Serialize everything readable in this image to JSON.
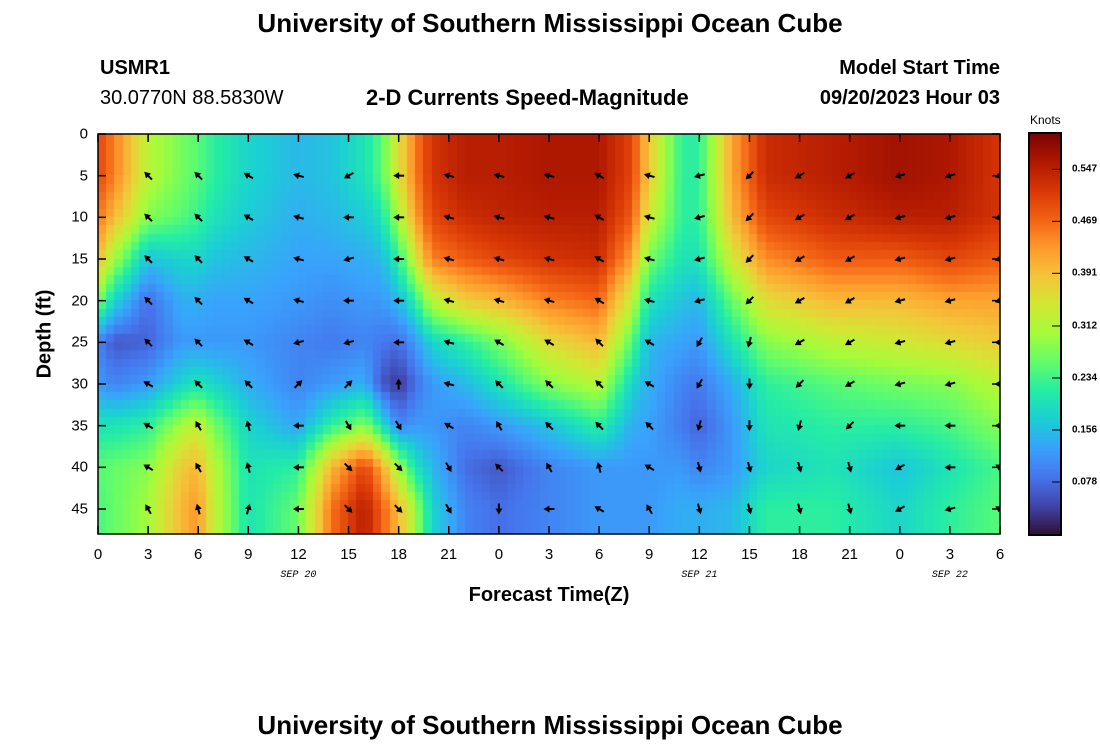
{
  "header": {
    "title": "University of Southern Mississippi Ocean Cube",
    "station": "USMR1",
    "coords": "30.0770N  88.5830W",
    "subtitle": "2-D Currents Speed-Magnitude",
    "start_label": "Model Start Time",
    "start_value": "09/20/2023 Hour 03"
  },
  "footer": {
    "title": "University of Southern Mississippi Ocean Cube"
  },
  "chart_data": {
    "type": "heatmap",
    "title": "2-D Currents Speed-Magnitude",
    "xlabel": "Forecast Time(Z)",
    "ylabel": "Depth (ft)",
    "x_tick_labels": [
      "0",
      "3",
      "6",
      "9",
      "12",
      "15",
      "18",
      "21",
      "0",
      "3",
      "6",
      "9",
      "12",
      "15",
      "18",
      "21",
      "0",
      "3",
      "6"
    ],
    "x_hours": [
      0,
      3,
      6,
      9,
      12,
      15,
      18,
      21,
      24,
      27,
      30,
      33,
      36,
      39,
      42,
      45,
      48,
      51,
      54
    ],
    "xlim": [
      0,
      54
    ],
    "date_labels": [
      {
        "text": "SEP 20",
        "hour": 12
      },
      {
        "text": "SEP 21",
        "hour": 36
      },
      {
        "text": "SEP 22",
        "hour": 51
      }
    ],
    "y_tick_labels": [
      "0",
      "5",
      "10",
      "15",
      "20",
      "25",
      "30",
      "35",
      "40",
      "45"
    ],
    "y_ticks": [
      0,
      5,
      10,
      15,
      20,
      25,
      30,
      35,
      40,
      45
    ],
    "ylim": [
      0,
      48
    ],
    "colorbar": {
      "unit": "Knots",
      "tick_labels": [
        "0.547",
        "0.469",
        "0.391",
        "0.312",
        "0.234",
        "0.156",
        "0.078"
      ],
      "tick_values": [
        0.547,
        0.469,
        0.391,
        0.312,
        0.234,
        0.156,
        0.078
      ],
      "range": [
        0.0,
        0.6
      ],
      "colors": [
        "#30123b",
        "#4145ab",
        "#4675ed",
        "#39a2fc",
        "#1bcfd4",
        "#24eca6",
        "#61fc6c",
        "#a4fc3b",
        "#d1e834",
        "#f3c63a",
        "#fe9b2d",
        "#f36315",
        "#d93806",
        "#b11901",
        "#7a0403"
      ]
    },
    "speed_profiles_knots": {
      "hours": [
        0,
        1,
        3,
        5,
        6,
        7,
        9,
        12,
        14,
        16,
        17,
        18,
        19,
        20,
        22,
        24,
        27,
        30,
        32,
        33,
        35,
        36,
        38,
        40,
        44,
        48,
        51,
        54
      ],
      "depths_ft": [
        0,
        5,
        10,
        15,
        20,
        25,
        30,
        35,
        40,
        45,
        48
      ],
      "values": [
        [
          0.5,
          0.5,
          0.46,
          0.4,
          0.28,
          0.1,
          0.12,
          0.2,
          0.25,
          0.24,
          0.24
        ],
        [
          0.45,
          0.45,
          0.4,
          0.3,
          0.18,
          0.06,
          0.1,
          0.2,
          0.26,
          0.26,
          0.26
        ],
        [
          0.32,
          0.32,
          0.28,
          0.16,
          0.08,
          0.07,
          0.12,
          0.22,
          0.28,
          0.3,
          0.3
        ],
        [
          0.27,
          0.27,
          0.25,
          0.18,
          0.14,
          0.12,
          0.18,
          0.3,
          0.38,
          0.4,
          0.4
        ],
        [
          0.25,
          0.25,
          0.23,
          0.18,
          0.14,
          0.12,
          0.2,
          0.33,
          0.4,
          0.43,
          0.43
        ],
        [
          0.22,
          0.22,
          0.2,
          0.16,
          0.13,
          0.12,
          0.18,
          0.27,
          0.32,
          0.33,
          0.33
        ],
        [
          0.18,
          0.18,
          0.17,
          0.15,
          0.13,
          0.12,
          0.14,
          0.18,
          0.2,
          0.2,
          0.2
        ],
        [
          0.15,
          0.15,
          0.14,
          0.13,
          0.12,
          0.1,
          0.1,
          0.13,
          0.22,
          0.26,
          0.26
        ],
        [
          0.16,
          0.16,
          0.15,
          0.13,
          0.11,
          0.09,
          0.12,
          0.22,
          0.4,
          0.46,
          0.46
        ],
        [
          0.2,
          0.2,
          0.17,
          0.14,
          0.12,
          0.1,
          0.14,
          0.28,
          0.5,
          0.55,
          0.55
        ],
        [
          0.25,
          0.25,
          0.2,
          0.15,
          0.12,
          0.09,
          0.06,
          0.2,
          0.42,
          0.48,
          0.48
        ],
        [
          0.35,
          0.35,
          0.3,
          0.22,
          0.15,
          0.08,
          0.03,
          0.1,
          0.3,
          0.4,
          0.4
        ],
        [
          0.45,
          0.45,
          0.42,
          0.34,
          0.22,
          0.12,
          0.08,
          0.12,
          0.2,
          0.3,
          0.3
        ],
        [
          0.52,
          0.52,
          0.5,
          0.45,
          0.32,
          0.18,
          0.12,
          0.12,
          0.15,
          0.18,
          0.18
        ],
        [
          0.55,
          0.55,
          0.53,
          0.48,
          0.38,
          0.22,
          0.15,
          0.1,
          0.08,
          0.1,
          0.1
        ],
        [
          0.55,
          0.55,
          0.54,
          0.5,
          0.4,
          0.27,
          0.2,
          0.12,
          0.06,
          0.08,
          0.08
        ],
        [
          0.56,
          0.56,
          0.55,
          0.52,
          0.45,
          0.36,
          0.28,
          0.16,
          0.1,
          0.1,
          0.1
        ],
        [
          0.56,
          0.56,
          0.55,
          0.53,
          0.47,
          0.4,
          0.32,
          0.22,
          0.12,
          0.12,
          0.12
        ],
        [
          0.5,
          0.5,
          0.48,
          0.42,
          0.33,
          0.25,
          0.18,
          0.14,
          0.12,
          0.12,
          0.12
        ],
        [
          0.38,
          0.38,
          0.34,
          0.27,
          0.2,
          0.15,
          0.14,
          0.13,
          0.12,
          0.12,
          0.12
        ],
        [
          0.22,
          0.22,
          0.22,
          0.2,
          0.16,
          0.13,
          0.1,
          0.09,
          0.12,
          0.14,
          0.14
        ],
        [
          0.22,
          0.22,
          0.22,
          0.2,
          0.15,
          0.12,
          0.09,
          0.07,
          0.1,
          0.14,
          0.14
        ],
        [
          0.42,
          0.42,
          0.4,
          0.34,
          0.26,
          0.2,
          0.14,
          0.12,
          0.12,
          0.15,
          0.15
        ],
        [
          0.53,
          0.53,
          0.5,
          0.44,
          0.36,
          0.28,
          0.22,
          0.2,
          0.18,
          0.22,
          0.22
        ],
        [
          0.55,
          0.55,
          0.53,
          0.48,
          0.4,
          0.32,
          0.25,
          0.22,
          0.2,
          0.22,
          0.22
        ],
        [
          0.57,
          0.57,
          0.55,
          0.48,
          0.4,
          0.34,
          0.27,
          0.22,
          0.16,
          0.18,
          0.18
        ],
        [
          0.56,
          0.56,
          0.55,
          0.5,
          0.42,
          0.36,
          0.28,
          0.24,
          0.2,
          0.22,
          0.22
        ],
        [
          0.52,
          0.52,
          0.52,
          0.48,
          0.42,
          0.38,
          0.32,
          0.28,
          0.24,
          0.25,
          0.25
        ]
      ]
    },
    "vector_depths_ft": [
      5,
      10,
      15,
      20,
      25,
      30,
      35,
      40,
      45
    ],
    "vector_hours": [
      3,
      6,
      9,
      12,
      15,
      18,
      21,
      24,
      27,
      30,
      33,
      36,
      39,
      42,
      45,
      48,
      51,
      54
    ],
    "vector_directions_deg": [
      [
        315,
        315,
        315,
        315,
        315,
        300,
        300,
        300,
        330
      ],
      [
        315,
        315,
        315,
        315,
        315,
        315,
        330,
        330,
        345
      ],
      [
        300,
        300,
        300,
        300,
        300,
        315,
        345,
        345,
        15
      ],
      [
        285,
        285,
        285,
        285,
        255,
        45,
        270,
        270,
        270
      ],
      [
        240,
        270,
        255,
        270,
        255,
        45,
        150,
        135,
        135
      ],
      [
        270,
        270,
        270,
        270,
        270,
        0,
        150,
        135,
        135
      ],
      [
        285,
        285,
        285,
        285,
        285,
        285,
        300,
        150,
        150
      ],
      [
        285,
        285,
        285,
        285,
        300,
        315,
        330,
        315,
        180
      ],
      [
        285,
        285,
        285,
        285,
        300,
        315,
        315,
        330,
        270
      ],
      [
        300,
        300,
        300,
        300,
        315,
        315,
        315,
        345,
        300
      ],
      [
        285,
        285,
        285,
        285,
        300,
        300,
        315,
        300,
        330
      ],
      [
        255,
        255,
        255,
        255,
        210,
        210,
        195,
        165,
        165
      ],
      [
        225,
        225,
        225,
        225,
        195,
        180,
        180,
        165,
        165
      ],
      [
        240,
        240,
        240,
        240,
        240,
        225,
        195,
        165,
        165
      ],
      [
        240,
        240,
        240,
        240,
        240,
        240,
        225,
        165,
        165
      ],
      [
        255,
        255,
        255,
        255,
        255,
        255,
        270,
        240,
        240
      ],
      [
        255,
        255,
        255,
        255,
        255,
        255,
        270,
        270,
        255
      ],
      [
        255,
        255,
        255,
        255,
        270,
        270,
        270,
        300,
        300
      ]
    ]
  }
}
